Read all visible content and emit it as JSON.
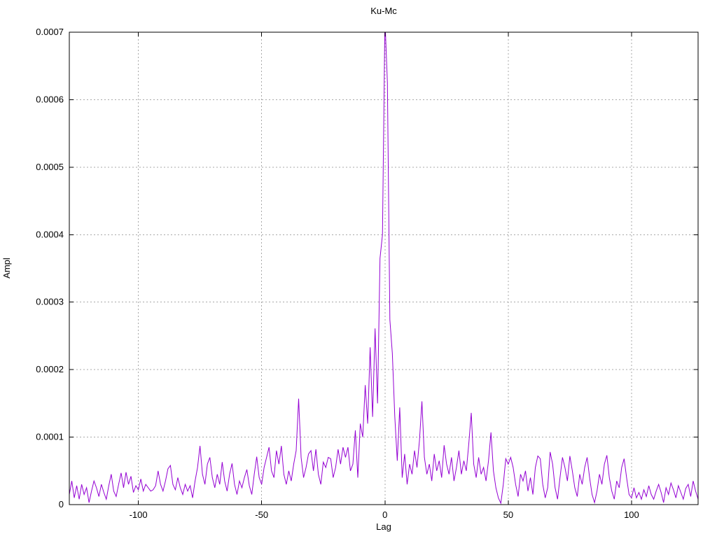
{
  "page": {
    "background": "#ffffff"
  },
  "chart_data": {
    "type": "line",
    "title": "Ku-Mc",
    "xlabel": "Lag",
    "ylabel": "Ampl",
    "x_range": [
      -128,
      127
    ],
    "y_range": [
      0,
      0.0007
    ],
    "x_ticks": [
      -100,
      -50,
      0,
      50,
      100
    ],
    "x_tick_labels": [
      "-100",
      "-50",
      "0",
      "50",
      "100"
    ],
    "y_ticks": [
      0,
      0.0001,
      0.0002,
      0.0003,
      0.0004,
      0.0005,
      0.0006,
      0.0007
    ],
    "y_tick_labels": [
      "0",
      "0.0001",
      "0.0002",
      "0.0003",
      "0.0004",
      "0.0005",
      "0.0006",
      "0.0007"
    ],
    "grid": true,
    "grid_style": "dashed",
    "grid_color": "#a8a8a8",
    "line_color": "#9400D3",
    "axis_color": "#000000",
    "legend": "none",
    "notes": "single dense series; main peak at lag 0 exceeds top of y-range (clipped at 0.0007); secondary peak ~0.000625 at lag 1; side spikes near lags -35, 15, 35, 43",
    "series": [
      {
        "x_start": -128,
        "x_step": 1,
        "y_unit_multiplier": 1e-06,
        "values": [
          15,
          35,
          10,
          28,
          8,
          30,
          15,
          25,
          3,
          20,
          35,
          25,
          12,
          30,
          18,
          8,
          28,
          45,
          20,
          12,
          30,
          47,
          25,
          48,
          30,
          42,
          18,
          28,
          22,
          38,
          20,
          30,
          25,
          20,
          22,
          28,
          50,
          30,
          20,
          35,
          53,
          58,
          30,
          22,
          40,
          25,
          15,
          30,
          20,
          28,
          10,
          35,
          55,
          87,
          45,
          30,
          60,
          70,
          40,
          25,
          45,
          30,
          63,
          35,
          20,
          45,
          61,
          30,
          15,
          35,
          25,
          40,
          52,
          28,
          15,
          45,
          71,
          40,
          30,
          55,
          70,
          85,
          50,
          40,
          80,
          60,
          87,
          45,
          30,
          50,
          35,
          60,
          80,
          157,
          70,
          40,
          55,
          75,
          80,
          50,
          82,
          45,
          30,
          63,
          55,
          70,
          68,
          40,
          55,
          82,
          60,
          85,
          70,
          85,
          50,
          60,
          110,
          40,
          120,
          100,
          177,
          120,
          233,
          130,
          261,
          150,
          365,
          400,
          720,
          625,
          274,
          224,
          130,
          65,
          144,
          40,
          75,
          30,
          60,
          45,
          80,
          55,
          95,
          153,
          70,
          45,
          60,
          35,
          75,
          50,
          65,
          40,
          88,
          60,
          45,
          70,
          35,
          55,
          80,
          45,
          65,
          50,
          90,
          136,
          60,
          40,
          70,
          45,
          55,
          35,
          65,
          107,
          50,
          25,
          10,
          2,
          30,
          68,
          60,
          70,
          55,
          30,
          12,
          45,
          35,
          50,
          20,
          40,
          15,
          55,
          72,
          68,
          30,
          10,
          25,
          78,
          60,
          25,
          8,
          40,
          70,
          55,
          35,
          72,
          50,
          25,
          12,
          45,
          30,
          55,
          70,
          40,
          15,
          3,
          20,
          45,
          30,
          60,
          73,
          40,
          20,
          8,
          35,
          25,
          55,
          68,
          40,
          15,
          10,
          25,
          10,
          18,
          8,
          22,
          12,
          28,
          15,
          8,
          20,
          30,
          18,
          3,
          25,
          15,
          32,
          22,
          10,
          28,
          18,
          8,
          24,
          30,
          12,
          35,
          20,
          8
        ]
      }
    ]
  }
}
